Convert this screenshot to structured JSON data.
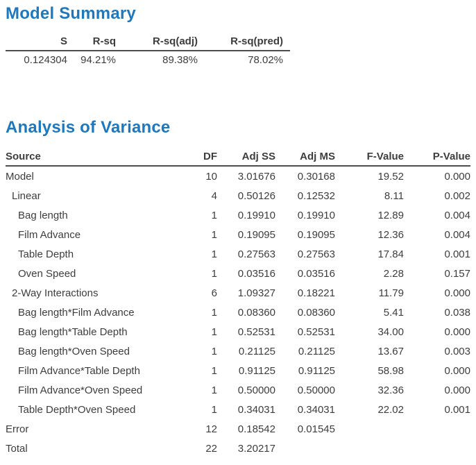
{
  "colors": {
    "heading": "#1d78be",
    "text": "#3d3d3d",
    "rule": "#4d4d4d"
  },
  "model_summary": {
    "title": "Model Summary",
    "columns": [
      "S",
      "R-sq",
      "R-sq(adj)",
      "R-sq(pred)"
    ],
    "values": [
      "0.124304",
      "94.21%",
      "89.38%",
      "78.02%"
    ]
  },
  "anova": {
    "title": "Analysis of Variance",
    "columns": [
      "Source",
      "DF",
      "Adj SS",
      "Adj MS",
      "F-Value",
      "P-Value"
    ],
    "rows": [
      {
        "indent": 0,
        "source": "Model",
        "df": "10",
        "adj_ss": "3.01676",
        "adj_ms": "0.30168",
        "f": "19.52",
        "p": "0.000"
      },
      {
        "indent": 1,
        "source": "Linear",
        "df": "4",
        "adj_ss": "0.50126",
        "adj_ms": "0.12532",
        "f": "8.11",
        "p": "0.002"
      },
      {
        "indent": 2,
        "source": "Bag length",
        "df": "1",
        "adj_ss": "0.19910",
        "adj_ms": "0.19910",
        "f": "12.89",
        "p": "0.004"
      },
      {
        "indent": 2,
        "source": "Film Advance",
        "df": "1",
        "adj_ss": "0.19095",
        "adj_ms": "0.19095",
        "f": "12.36",
        "p": "0.004"
      },
      {
        "indent": 2,
        "source": "Table Depth",
        "df": "1",
        "adj_ss": "0.27563",
        "adj_ms": "0.27563",
        "f": "17.84",
        "p": "0.001"
      },
      {
        "indent": 2,
        "source": "Oven Speed",
        "df": "1",
        "adj_ss": "0.03516",
        "adj_ms": "0.03516",
        "f": "2.28",
        "p": "0.157"
      },
      {
        "indent": 1,
        "source": "2-Way Interactions",
        "df": "6",
        "adj_ss": "1.09327",
        "adj_ms": "0.18221",
        "f": "11.79",
        "p": "0.000"
      },
      {
        "indent": 2,
        "source": "Bag length*Film Advance",
        "df": "1",
        "adj_ss": "0.08360",
        "adj_ms": "0.08360",
        "f": "5.41",
        "p": "0.038"
      },
      {
        "indent": 2,
        "source": "Bag length*Table Depth",
        "df": "1",
        "adj_ss": "0.52531",
        "adj_ms": "0.52531",
        "f": "34.00",
        "p": "0.000"
      },
      {
        "indent": 2,
        "source": "Bag length*Oven Speed",
        "df": "1",
        "adj_ss": "0.21125",
        "adj_ms": "0.21125",
        "f": "13.67",
        "p": "0.003"
      },
      {
        "indent": 2,
        "source": "Film Advance*Table Depth",
        "df": "1",
        "adj_ss": "0.91125",
        "adj_ms": "0.91125",
        "f": "58.98",
        "p": "0.000"
      },
      {
        "indent": 2,
        "source": "Film Advance*Oven Speed",
        "df": "1",
        "adj_ss": "0.50000",
        "adj_ms": "0.50000",
        "f": "32.36",
        "p": "0.000"
      },
      {
        "indent": 2,
        "source": "Table Depth*Oven Speed",
        "df": "1",
        "adj_ss": "0.34031",
        "adj_ms": "0.34031",
        "f": "22.02",
        "p": "0.001"
      },
      {
        "indent": 0,
        "source": "Error",
        "df": "12",
        "adj_ss": "0.18542",
        "adj_ms": "0.01545",
        "f": "",
        "p": ""
      },
      {
        "indent": 0,
        "source": "Total",
        "df": "22",
        "adj_ss": "3.20217",
        "adj_ms": "",
        "f": "",
        "p": ""
      }
    ]
  }
}
